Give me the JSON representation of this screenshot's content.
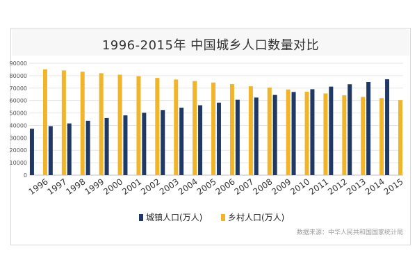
{
  "chart_data": {
    "type": "bar",
    "title": "1996-2015年 中国城乡人口数量对比",
    "categories": [
      "1996",
      "1997",
      "1998",
      "1999",
      "2000",
      "2001",
      "2002",
      "2003",
      "2004",
      "2005",
      "2006",
      "2007",
      "2008",
      "2009",
      "2010",
      "2011",
      "2012",
      "2013",
      "2014",
      "2015"
    ],
    "series": [
      {
        "name": "城镇人口(万人)",
        "color": "#1f3864",
        "values": [
          37300,
          39400,
          41600,
          43700,
          45900,
          48100,
          50200,
          52400,
          54300,
          56200,
          58300,
          60600,
          62400,
          64500,
          66900,
          69100,
          71200,
          73100,
          74900,
          77100
        ]
      },
      {
        "name": "乡村人口(万人)",
        "color": "#f0b52a",
        "values": [
          85100,
          84200,
          83200,
          82000,
          80800,
          79600,
          78200,
          76900,
          75700,
          74500,
          73200,
          71500,
          70400,
          68900,
          67100,
          65700,
          64200,
          62900,
          61900,
          60300
        ]
      }
    ],
    "ylim": [
      0,
      90000
    ],
    "yticks": [
      "0",
      "10000",
      "20000",
      "30000",
      "40000",
      "50000",
      "60000",
      "70000",
      "80000",
      "90000"
    ],
    "grid": true,
    "legend": "bottom-center",
    "source": "数据来源：中华人民共和国国家统计局"
  }
}
